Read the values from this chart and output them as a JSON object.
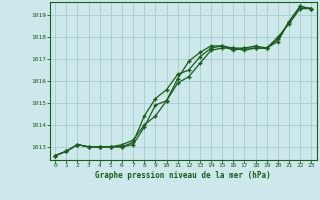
{
  "title": "Graphe pression niveau de la mer (hPa)",
  "background_color": "#cce8ea",
  "grid_color": "#aacccc",
  "line_color": "#1a5c1a",
  "marker_color": "#1a5c1a",
  "xlim": [
    -0.5,
    23.5
  ],
  "ylim": [
    1012.4,
    1019.6
  ],
  "xticks": [
    0,
    1,
    2,
    3,
    4,
    5,
    6,
    7,
    8,
    9,
    10,
    11,
    12,
    13,
    14,
    15,
    16,
    17,
    18,
    19,
    20,
    21,
    22,
    23
  ],
  "yticks": [
    1013,
    1014,
    1015,
    1016,
    1017,
    1018,
    1019
  ],
  "line1": [
    1012.6,
    1012.8,
    1013.1,
    1013.0,
    1013.0,
    1013.0,
    1013.0,
    1013.1,
    1013.9,
    1014.9,
    1015.1,
    1015.9,
    1016.2,
    1016.8,
    1017.4,
    1017.5,
    1017.5,
    1017.4,
    1017.5,
    1017.5,
    1018.0,
    1018.6,
    1019.3,
    1019.3
  ],
  "line2": [
    1012.6,
    1012.8,
    1013.1,
    1013.0,
    1013.0,
    1013.0,
    1013.0,
    1013.2,
    1014.4,
    1015.2,
    1015.6,
    1016.3,
    1016.5,
    1017.1,
    1017.5,
    1017.6,
    1017.5,
    1017.5,
    1017.6,
    1017.5,
    1017.9,
    1018.7,
    1019.4,
    1019.3
  ],
  "line3": [
    1012.6,
    1012.8,
    1013.1,
    1013.0,
    1013.0,
    1013.0,
    1013.1,
    1013.3,
    1014.0,
    1014.4,
    1015.1,
    1016.1,
    1016.9,
    1017.3,
    1017.6,
    1017.6,
    1017.4,
    1017.5,
    1017.5,
    1017.5,
    1017.8,
    1018.7,
    1019.4,
    1019.3
  ]
}
